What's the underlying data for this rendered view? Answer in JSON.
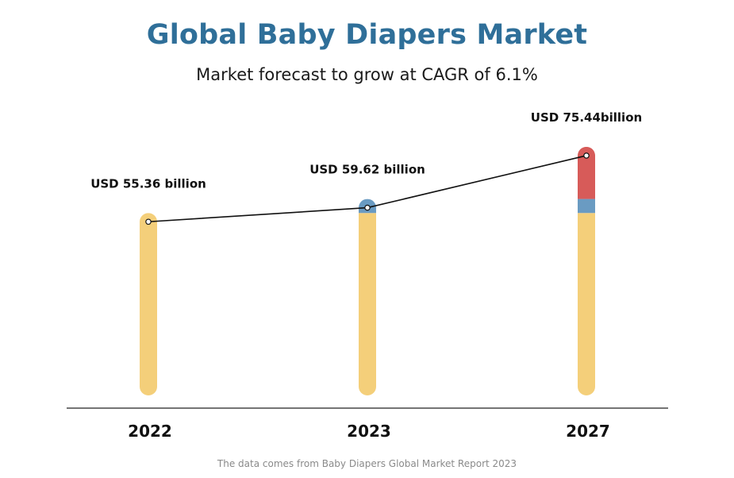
{
  "header": {
    "title": "Global Baby Diapers Market",
    "subtitle": "Market forecast to grow at CAGR of 6.1%"
  },
  "footer": {
    "source": "The data comes from Baby Diapers Global Market Report 2023"
  },
  "colors": {
    "title": "#2f6f99",
    "base_segment": "#f4cf7a",
    "mid_segment": "#6a9bc2",
    "top_segment": "#d75b59",
    "line": "#111111",
    "axis": "#222222"
  },
  "chart_data": {
    "type": "bar",
    "categories": [
      "2022",
      "2023",
      "2027"
    ],
    "values": [
      55.36,
      59.62,
      75.44
    ],
    "data_labels": [
      "USD 55.36 billion",
      "USD 59.62 billion",
      "USD 75.44billion"
    ],
    "segment_colors": [
      "#f4cf7a",
      "#6a9bc2",
      "#d75b59"
    ],
    "trend_line": true,
    "grid": false,
    "legend": "none"
  }
}
